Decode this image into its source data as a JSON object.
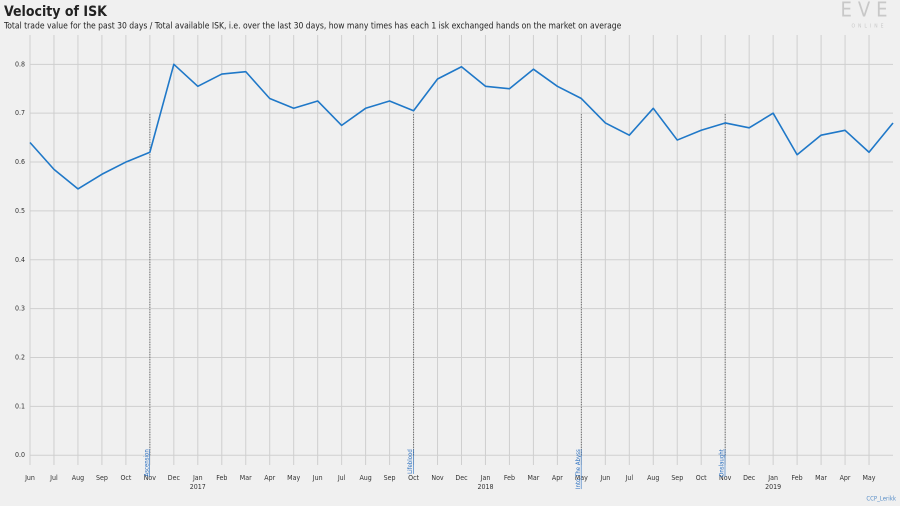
{
  "chart_data": {
    "type": "line",
    "title": "Velocity of ISK",
    "subtitle": "Total trade value for the past 30 days / Total available ISK, i.e. over the last 30 days, how many times has each 1 isk exchanged hands on the market on average",
    "logo": "EVE",
    "logo_sub": "ONLINE",
    "credit": "CCP_Lerikk",
    "x": [
      "2016-06",
      "2016-07",
      "2016-08",
      "2016-09",
      "2016-10",
      "2016-11",
      "2016-12",
      "2017-01",
      "2017-02",
      "2017-03",
      "2017-04",
      "2017-05",
      "2017-06",
      "2017-07",
      "2017-08",
      "2017-09",
      "2017-10",
      "2017-11",
      "2017-12",
      "2018-01",
      "2018-02",
      "2018-03",
      "2018-04",
      "2018-05",
      "2018-06",
      "2018-07",
      "2018-08",
      "2018-09",
      "2018-10",
      "2018-11",
      "2018-12",
      "2019-01",
      "2019-02",
      "2019-03",
      "2019-04",
      "2019-05",
      "2019-06"
    ],
    "series": [
      {
        "name": "Velocity",
        "color": "#1f78c8",
        "values": [
          0.64,
          0.585,
          0.545,
          0.575,
          0.6,
          0.62,
          0.8,
          0.755,
          0.78,
          0.785,
          0.73,
          0.71,
          0.725,
          0.675,
          0.71,
          0.725,
          0.705,
          0.77,
          0.795,
          0.755,
          0.75,
          0.79,
          0.755,
          0.73,
          0.68,
          0.655,
          0.71,
          0.645,
          0.665,
          0.68,
          0.67,
          0.7,
          0.615,
          0.655,
          0.665,
          0.62,
          0.68
        ]
      }
    ],
    "xlim": [
      "2016-06",
      "2019-06"
    ],
    "ylim": [
      -0.02,
      0.86
    ],
    "yticks": [
      {
        "value": 0,
        "label": "0.0"
      },
      0.1,
      0.2,
      0.3,
      0.4,
      0.5,
      0.6,
      0.7,
      0.8
    ],
    "xticks": [
      {
        "value": "2016-06",
        "label": "Jun"
      },
      {
        "value": "2016-07",
        "label": "Jul"
      },
      {
        "value": "2016-08",
        "label": "Aug"
      },
      {
        "value": "2016-09",
        "label": "Sep"
      },
      {
        "value": "2016-10",
        "label": "Oct"
      },
      {
        "value": "2016-11",
        "label": "Nov"
      },
      {
        "value": "2016-12",
        "label": "Dec"
      },
      {
        "value": "2017-01",
        "label": "Jan"
      },
      {
        "value": "2017-02",
        "label": "Feb"
      },
      {
        "value": "2017-03",
        "label": "Mar"
      },
      {
        "value": "2017-04",
        "label": "Apr"
      },
      {
        "value": "2017-05",
        "label": "May"
      },
      {
        "value": "2017-06",
        "label": "Jun"
      },
      {
        "value": "2017-07",
        "label": "Jul"
      },
      {
        "value": "2017-08",
        "label": "Aug"
      },
      {
        "value": "2017-09",
        "label": "Sep"
      },
      {
        "value": "2017-10",
        "label": "Oct"
      },
      {
        "value": "2017-11",
        "label": "Nov"
      },
      {
        "value": "2017-12",
        "label": "Dec"
      },
      {
        "value": "2018-01",
        "label": "Jan"
      },
      {
        "value": "2018-02",
        "label": "Feb"
      },
      {
        "value": "2018-03",
        "label": "Mar"
      },
      {
        "value": "2018-04",
        "label": "Apr"
      },
      {
        "value": "2018-05",
        "label": "May"
      },
      {
        "value": "2018-06",
        "label": "Jun"
      },
      {
        "value": "2018-07",
        "label": "Jul"
      },
      {
        "value": "2018-08",
        "label": "Aug"
      },
      {
        "value": "2018-09",
        "label": "Sep"
      },
      {
        "value": "2018-10",
        "label": "Oct"
      },
      {
        "value": "2018-11",
        "label": "Nov"
      },
      {
        "value": "2018-12",
        "label": "Dec"
      },
      {
        "value": "2019-01",
        "label": "Jan"
      },
      {
        "value": "2019-02",
        "label": "Feb"
      },
      {
        "value": "2019-03",
        "label": "Mar"
      },
      {
        "value": "2019-04",
        "label": "Apr"
      },
      {
        "value": "2019-05",
        "label": "May"
      }
    ],
    "year_ticks": [
      {
        "value": "2017-01",
        "label": "2017"
      },
      {
        "value": "2018-01",
        "label": "2018"
      },
      {
        "value": "2019-01",
        "label": "2019"
      }
    ],
    "annotations": [
      {
        "x": "2016-11",
        "label": "Ascension"
      },
      {
        "x": "2017-10",
        "label": "Lifeblood"
      },
      {
        "x": "2018-05",
        "label": "Into The Abyss"
      },
      {
        "x": "2018-11",
        "label": "Onslaught"
      }
    ],
    "grid": true
  }
}
